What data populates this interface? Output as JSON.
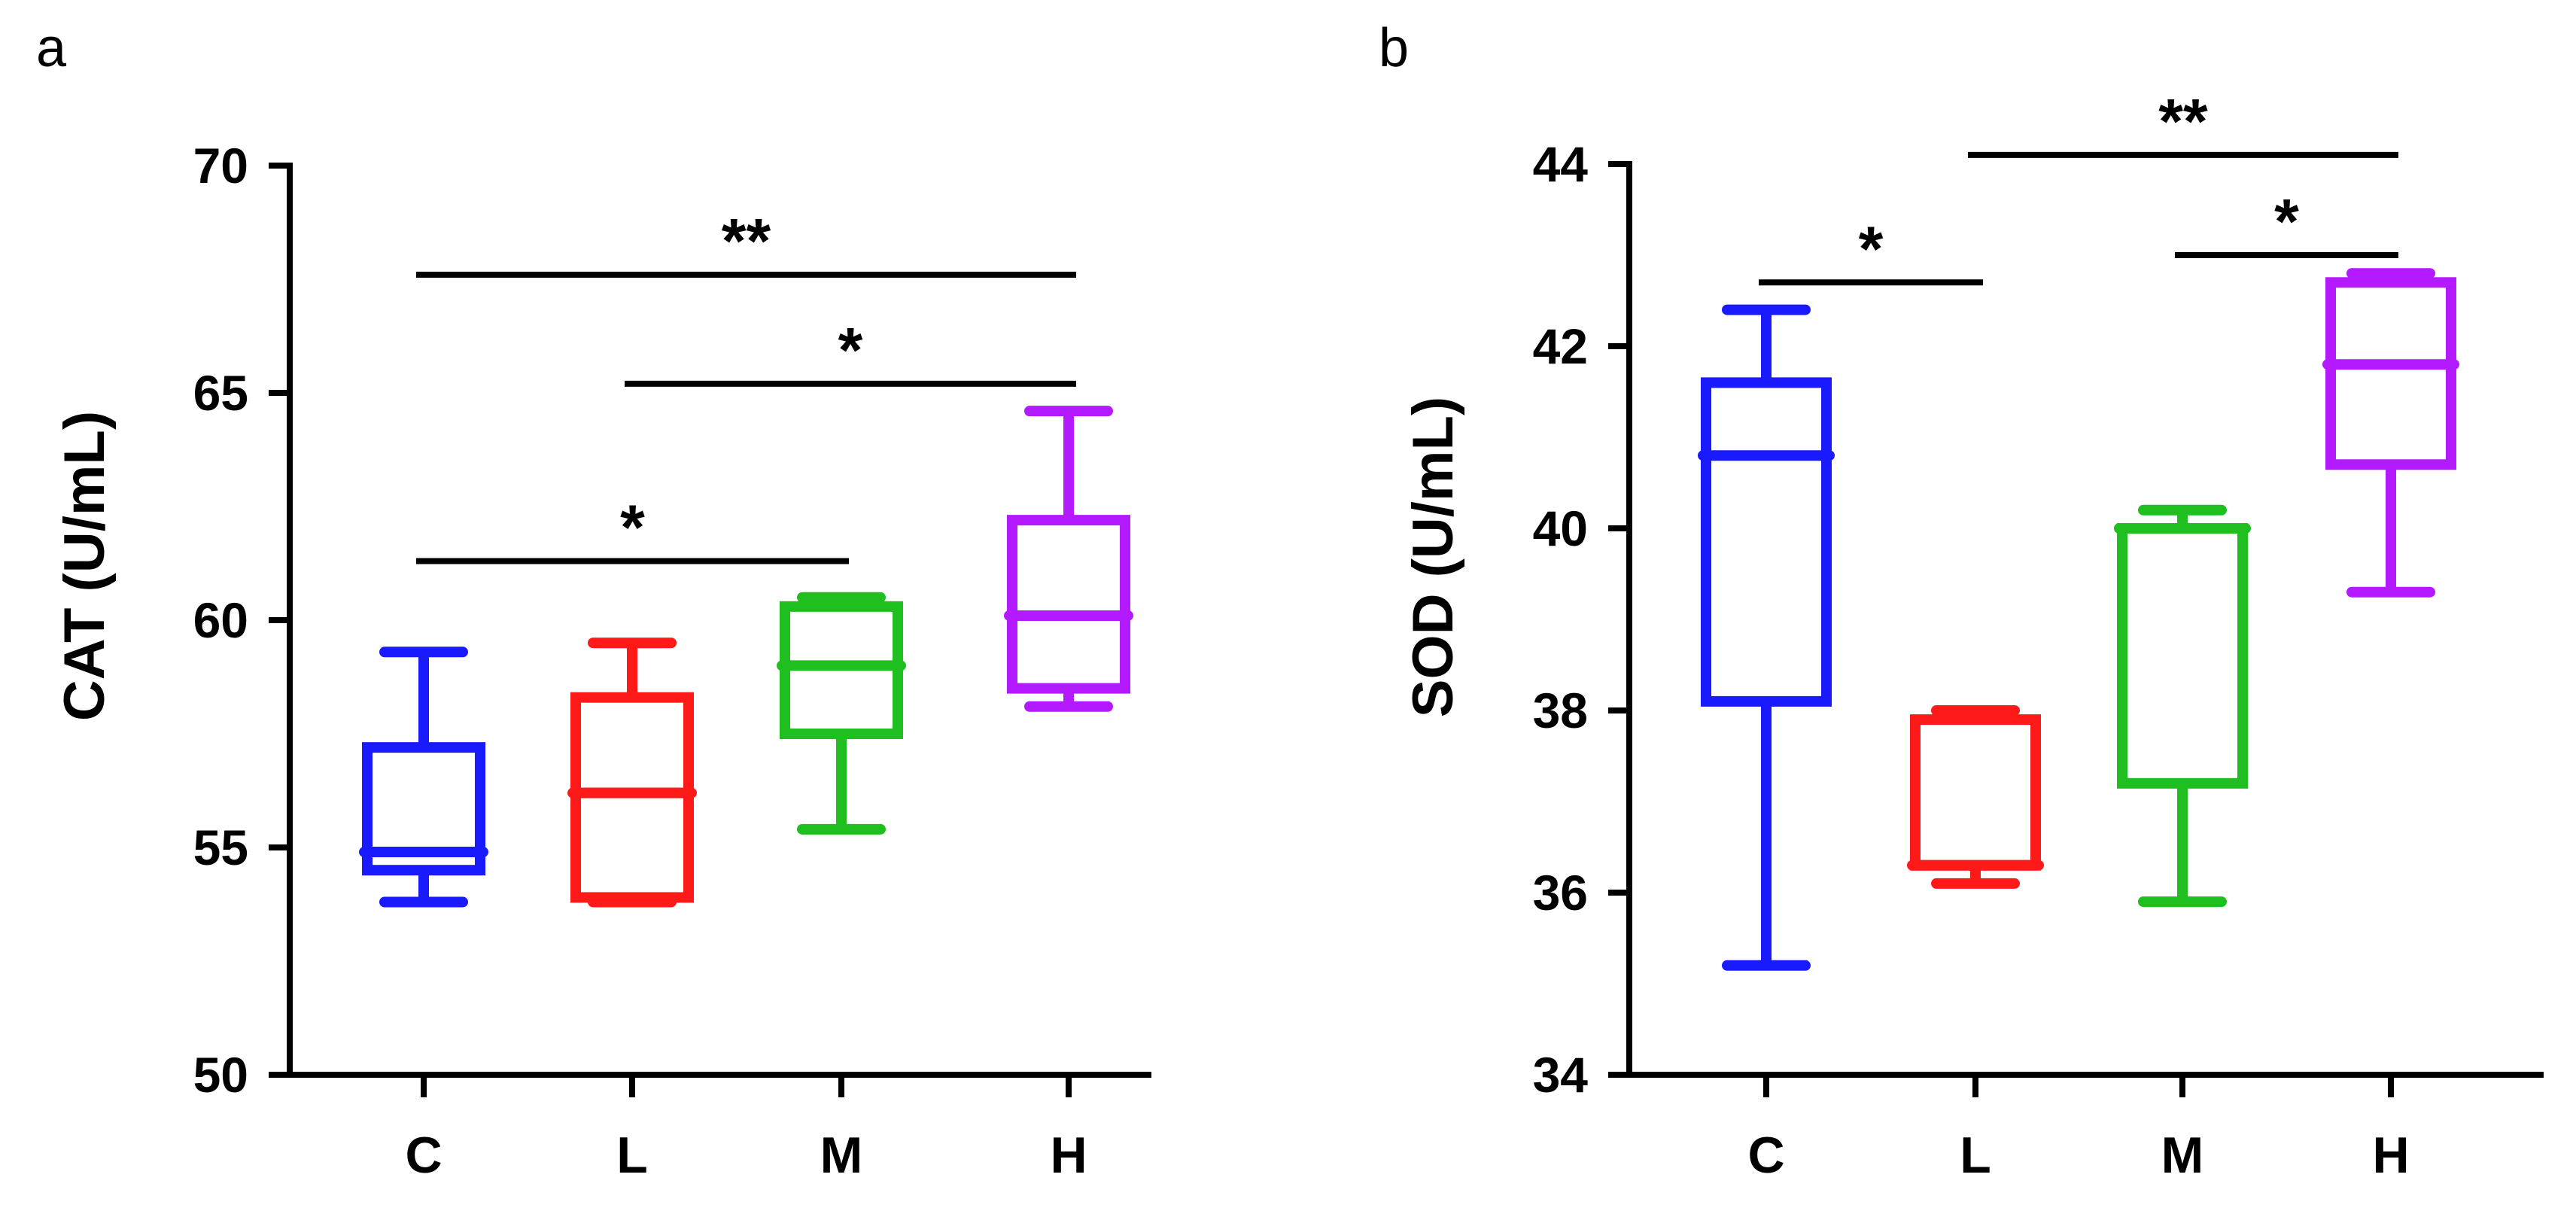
{
  "chart_data": [
    {
      "id": "a",
      "panel_label": "a",
      "type": "box",
      "ylabel": "CAT (U/mL)",
      "ylim": [
        50,
        70
      ],
      "yticks": [
        50,
        55,
        60,
        65,
        70
      ],
      "tick_labels": [
        "50",
        "55",
        "60",
        "65",
        "70"
      ],
      "categories": [
        "C",
        "L",
        "M",
        "H"
      ],
      "boxes": [
        {
          "name": "C",
          "color": "#1a1aff",
          "min": 53.8,
          "q1": 54.5,
          "median": 54.9,
          "q3": 57.2,
          "max": 59.3
        },
        {
          "name": "L",
          "color": "#ff1a1a",
          "min": 53.8,
          "q1": 53.9,
          "median": 56.2,
          "q3": 58.3,
          "max": 59.5
        },
        {
          "name": "M",
          "color": "#1fbf1f",
          "min": 55.4,
          "q1": 57.5,
          "median": 59.0,
          "q3": 60.3,
          "max": 60.5
        },
        {
          "name": "H",
          "color": "#b31aff",
          "min": 58.1,
          "q1": 58.5,
          "median": 60.1,
          "q3": 62.2,
          "max": 64.6
        }
      ],
      "significance": [
        {
          "from": "C",
          "to": "H",
          "label": "**",
          "y": 67.6
        },
        {
          "from": "L",
          "to": "H",
          "label": "*",
          "y": 65.2
        },
        {
          "from": "C",
          "to": "M",
          "label": "*",
          "y": 61.3
        }
      ]
    },
    {
      "id": "b",
      "panel_label": "b",
      "type": "box",
      "ylabel": "SOD (U/mL)",
      "ylim": [
        34,
        44
      ],
      "yticks": [
        34,
        36,
        38,
        40,
        42,
        44
      ],
      "tick_labels": [
        "34",
        "36",
        "38",
        "40",
        "42",
        "44"
      ],
      "categories": [
        "C",
        "L",
        "M",
        "H"
      ],
      "boxes": [
        {
          "name": "C",
          "color": "#1a1aff",
          "min": 35.2,
          "q1": 38.1,
          "median": 40.8,
          "q3": 41.6,
          "max": 42.4
        },
        {
          "name": "L",
          "color": "#ff1a1a",
          "min": 36.1,
          "q1": 36.3,
          "median": 36.3,
          "q3": 37.9,
          "max": 38.0
        },
        {
          "name": "M",
          "color": "#1fbf1f",
          "min": 35.9,
          "q1": 37.2,
          "median": 40.0,
          "q3": 40.0,
          "max": 40.2
        },
        {
          "name": "H",
          "color": "#b31aff",
          "min": 39.3,
          "q1": 40.7,
          "median": 41.8,
          "q3": 42.7,
          "max": 42.8
        }
      ],
      "significance": [
        {
          "from": "C",
          "to": "L",
          "label": "*",
          "y": 42.7
        },
        {
          "from": "L",
          "to": "H",
          "label": "**",
          "y": 44.1
        },
        {
          "from": "M",
          "to": "H",
          "label": "*",
          "y": 43.0
        }
      ]
    }
  ]
}
